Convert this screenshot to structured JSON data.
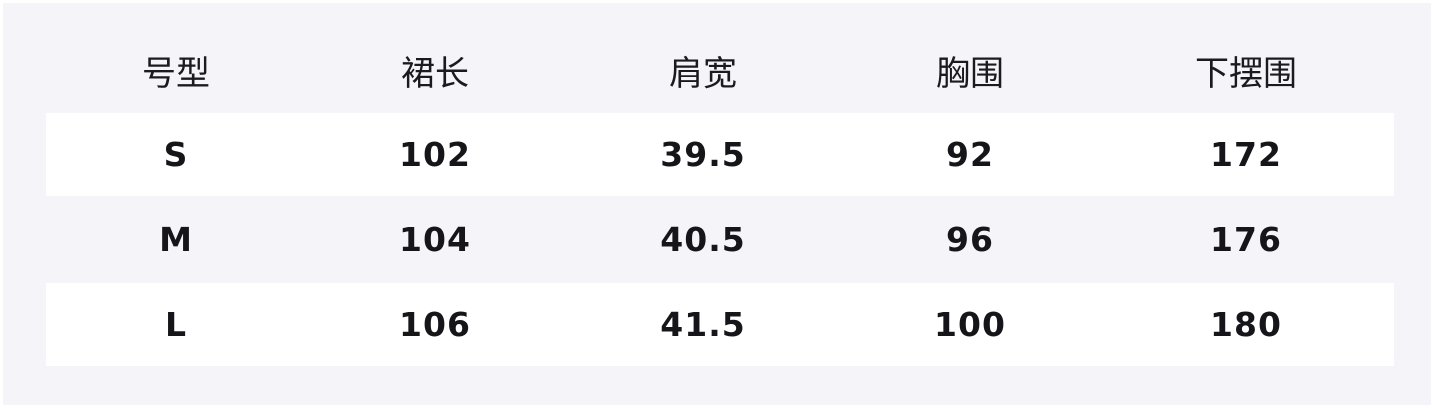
{
  "table": {
    "headers": [
      "号型",
      "裙长",
      "肩宽",
      "胸围",
      "下摆围"
    ],
    "rows": [
      [
        "S",
        "102",
        "39.5",
        "92",
        "172"
      ],
      [
        "M",
        "104",
        "40.5",
        "96",
        "176"
      ],
      [
        "L",
        "106",
        "41.5",
        "100",
        "180"
      ]
    ]
  },
  "colors": {
    "background": "#f4f4f9",
    "row_highlight": "#ffffff",
    "text": "#15151a"
  }
}
